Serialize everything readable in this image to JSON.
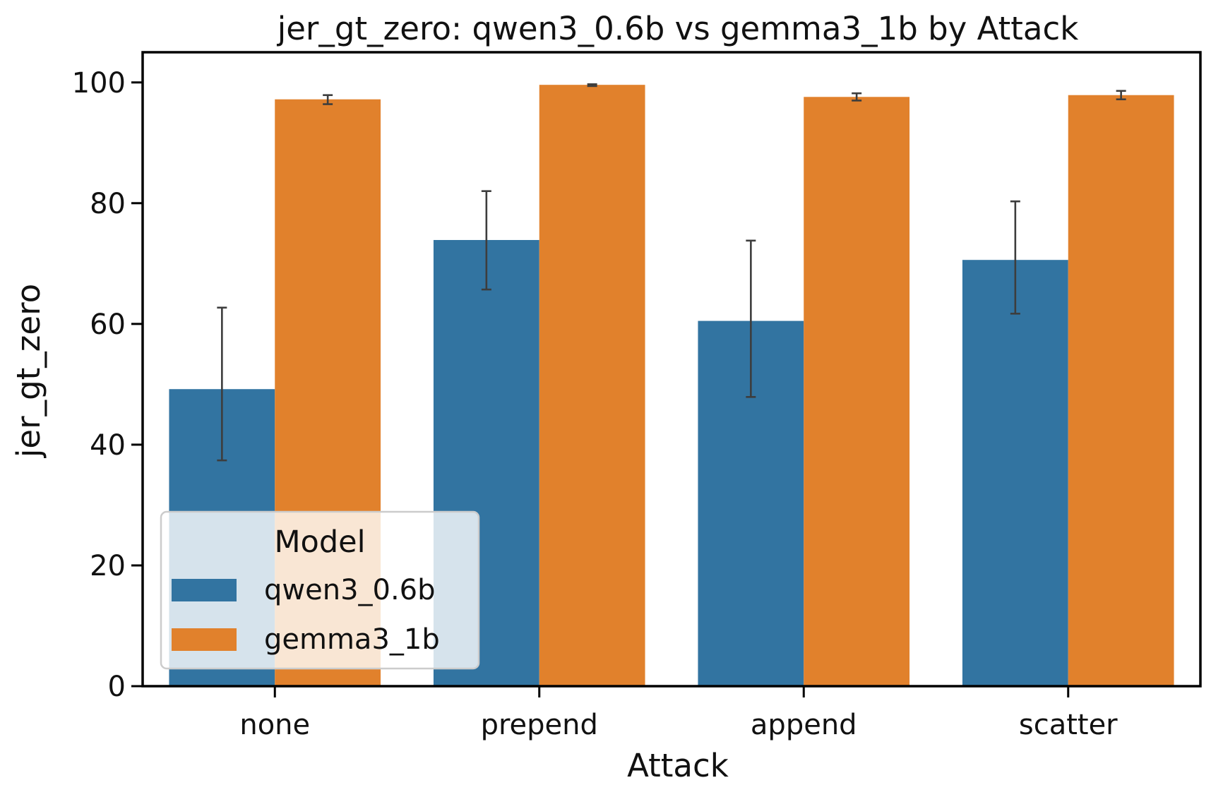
{
  "chart_data": {
    "type": "bar",
    "title": "jer_gt_zero: qwen3_0.6b vs gemma3_1b by Attack",
    "xlabel": "Attack",
    "ylabel": "jer_gt_zero",
    "categories": [
      "none",
      "prepend",
      "append",
      "scatter"
    ],
    "ylim": [
      0,
      105
    ],
    "yticks": [
      0,
      20,
      40,
      60,
      80,
      100
    ],
    "grid": false,
    "series": [
      {
        "name": "qwen3_0.6b",
        "color": "#3274a1",
        "values": [
          49.2,
          73.9,
          60.5,
          70.6
        ],
        "err_low": [
          37.4,
          65.7,
          47.9,
          61.7
        ],
        "err_high": [
          62.7,
          82.0,
          73.8,
          80.3
        ]
      },
      {
        "name": "gemma3_1b",
        "color": "#e1812c",
        "values": [
          97.2,
          99.6,
          97.6,
          97.9
        ],
        "err_low": [
          96.4,
          99.4,
          97.0,
          97.2
        ],
        "err_high": [
          97.9,
          99.7,
          98.2,
          98.6
        ]
      }
    ],
    "legend": {
      "title": "Model",
      "placement": "lower-left"
    }
  }
}
